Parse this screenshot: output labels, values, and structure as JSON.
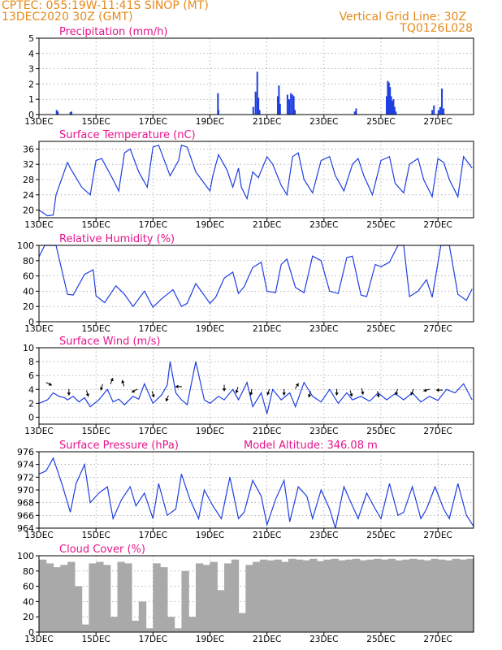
{
  "header": {
    "left_line1": "CPTEC:   055:19W-11:41S   SINOP (MT)",
    "left_line2": "13DEC2020  30Z (GMT)",
    "right_line1": "Vertical Grid Line: 30Z",
    "right_line2": "TQ0126L028"
  },
  "x_axis": {
    "ticks": [
      "13DEC",
      "15DEC",
      "17DEC",
      "19DEC",
      "21DEC",
      "23DEC",
      "25DEC",
      "27DEC"
    ],
    "tick_days": [
      0,
      2,
      4,
      6,
      8,
      10,
      12,
      14
    ],
    "xlim": [
      0,
      15.25
    ]
  },
  "colors": {
    "header": "#e68a1a",
    "panel_title": "#e6148c",
    "line": "#1f3fe0",
    "bar": "#1f3fe0",
    "cloud": "#a9a9a9",
    "grid": "#888888",
    "wind_arrow": "#000000"
  },
  "chart_data": [
    {
      "type": "bar",
      "title": "Precipitation (mm/h)",
      "ylim": [
        0,
        5
      ],
      "yticks": [
        0,
        1,
        2,
        3,
        4,
        5
      ],
      "grid": true,
      "x": [
        0.62,
        0.66,
        1.1,
        1.14,
        6.28,
        6.3,
        7.52,
        7.6,
        7.66,
        7.7,
        7.74,
        8.38,
        8.42,
        8.46,
        8.72,
        8.78,
        8.84,
        8.9,
        8.94,
        8.98,
        11.08,
        11.13,
        12.2,
        12.24,
        12.28,
        12.32,
        12.36,
        12.4,
        12.44,
        12.48,
        12.52,
        13.8,
        13.86,
        14.02,
        14.08,
        14.14,
        14.2
      ],
      "values": [
        0.3,
        0.2,
        0.15,
        0.2,
        1.4,
        0.3,
        0.5,
        1.5,
        2.8,
        1.1,
        0.3,
        1.2,
        1.9,
        0.7,
        1.3,
        1.0,
        1.4,
        1.3,
        1.2,
        0.3,
        0.2,
        0.4,
        1.2,
        2.2,
        2.1,
        1.8,
        1.2,
        0.9,
        1.0,
        0.5,
        0.2,
        0.3,
        0.6,
        0.3,
        0.5,
        1.7,
        0.4
      ]
    },
    {
      "type": "line",
      "title": "Surface Temperature (nC)",
      "ylim": [
        18,
        38
      ],
      "yticks": [
        20,
        24,
        28,
        32,
        36
      ],
      "grid": true,
      "x": [
        0,
        0.1,
        0.3,
        0.5,
        0.6,
        1,
        1.1,
        1.5,
        1.8,
        2,
        2.2,
        2.6,
        2.8,
        3,
        3.2,
        3.5,
        3.8,
        4,
        4.2,
        4.6,
        4.9,
        5,
        5.2,
        5.5,
        6,
        6.1,
        6.3,
        6.6,
        6.8,
        7,
        7.1,
        7.3,
        7.5,
        7.7,
        8,
        8.2,
        8.5,
        8.7,
        8.9,
        9.1,
        9.3,
        9.6,
        9.9,
        10.2,
        10.4,
        10.7,
        11,
        11.2,
        11.4,
        11.7,
        12,
        12.3,
        12.5,
        12.8,
        13,
        13.3,
        13.5,
        13.8,
        14,
        14.2,
        14.4,
        14.7,
        14.9,
        15.2
      ],
      "values": [
        20,
        19.5,
        18.5,
        18.7,
        24,
        32.5,
        31,
        26,
        24,
        33,
        33.5,
        28,
        25,
        35,
        36,
        30,
        26,
        36.5,
        37,
        29,
        33,
        37,
        36.5,
        30,
        25,
        29,
        34.5,
        30.5,
        26,
        31,
        26,
        23,
        30,
        28.5,
        34,
        32,
        26.5,
        24,
        34,
        35,
        28,
        24.5,
        33,
        34,
        29,
        25,
        32,
        33.5,
        29,
        24,
        33,
        34,
        27,
        24.5,
        32,
        33.5,
        28,
        23.5,
        33.5,
        32.5,
        28,
        23.5,
        34,
        31
      ]
    },
    {
      "type": "line",
      "title": "Relative Humidity (%)",
      "ylim": [
        0,
        100
      ],
      "yticks": [
        0,
        20,
        40,
        60,
        80,
        100
      ],
      "grid": true,
      "x": [
        0,
        0.2,
        0.6,
        1,
        1.2,
        1.6,
        1.9,
        2,
        2.3,
        2.7,
        3,
        3.3,
        3.7,
        4,
        4.3,
        4.7,
        5,
        5.2,
        5.5,
        6,
        6.2,
        6.5,
        6.8,
        7,
        7.2,
        7.5,
        7.8,
        8,
        8.3,
        8.5,
        8.7,
        9,
        9.3,
        9.6,
        9.9,
        10.2,
        10.5,
        10.8,
        11,
        11.3,
        11.5,
        11.8,
        12,
        12.3,
        12.6,
        12.8,
        13,
        13.3,
        13.6,
        13.8,
        14.1,
        14.4,
        14.7,
        15,
        15.2
      ],
      "values": [
        85,
        100,
        100,
        36,
        35,
        62,
        68,
        34,
        25,
        47,
        36,
        20,
        40,
        19,
        30,
        42,
        20,
        24,
        50,
        24,
        32,
        57,
        65,
        37,
        46,
        71,
        78,
        40,
        38,
        75,
        82,
        45,
        38,
        86,
        80,
        40,
        37,
        84,
        86,
        35,
        33,
        75,
        72,
        78,
        100,
        100,
        33,
        40,
        55,
        32,
        100,
        100,
        36,
        28,
        43
      ]
    },
    {
      "type": "line",
      "title": "Surface Wind (m/s)",
      "ylim": [
        -1,
        10
      ],
      "yticks": [
        0,
        2,
        4,
        6,
        8,
        10
      ],
      "grid": true,
      "x": [
        0,
        0.3,
        0.5,
        0.7,
        0.9,
        1,
        1.2,
        1.4,
        1.6,
        1.8,
        2.1,
        2.4,
        2.6,
        2.8,
        3,
        3.3,
        3.5,
        3.7,
        4,
        4.3,
        4.5,
        4.6,
        4.8,
        5,
        5.2,
        5.5,
        5.8,
        6,
        6.3,
        6.5,
        6.8,
        7,
        7.3,
        7.5,
        7.8,
        8,
        8.2,
        8.5,
        8.8,
        9,
        9.3,
        9.6,
        9.9,
        10.2,
        10.5,
        10.8,
        11,
        11.3,
        11.6,
        11.9,
        12.2,
        12.5,
        12.8,
        13.1,
        13.4,
        13.7,
        14,
        14.3,
        14.6,
        14.9,
        15.2
      ],
      "values": [
        2,
        2.5,
        3.5,
        3,
        2.8,
        2.5,
        3,
        2.2,
        2.8,
        1.5,
        2.5,
        4,
        2.2,
        2.6,
        1.8,
        3,
        2.6,
        4.8,
        2,
        3.2,
        4.6,
        8,
        3.5,
        2.5,
        1.8,
        8,
        2.5,
        2,
        3,
        2.5,
        4,
        2.5,
        5,
        1.5,
        3.5,
        0.5,
        4,
        2.5,
        3.5,
        1.5,
        5,
        3,
        2.2,
        4,
        2,
        3.5,
        2.5,
        3,
        2.3,
        3.5,
        2.5,
        3.4,
        2.5,
        3.5,
        2.2,
        3,
        2.4,
        4,
        3.5,
        4.8,
        2.5
      ],
      "arrows": [
        {
          "x": 0.35,
          "y": 4.8,
          "u": 1,
          "v": -0.5
        },
        {
          "x": 1.05,
          "y": 3.6,
          "u": 0,
          "v": -1
        },
        {
          "x": 1.7,
          "y": 3.4,
          "u": 0.3,
          "v": -1
        },
        {
          "x": 2.2,
          "y": 4.3,
          "u": -0.3,
          "v": -1
        },
        {
          "x": 2.55,
          "y": 5.2,
          "u": 0.4,
          "v": 1
        },
        {
          "x": 2.95,
          "y": 4.9,
          "u": -0.3,
          "v": 1
        },
        {
          "x": 3.35,
          "y": 3.8,
          "u": -1,
          "v": -0.6
        },
        {
          "x": 4.0,
          "y": 3.3,
          "u": 0.3,
          "v": -1
        },
        {
          "x": 4.5,
          "y": 2.7,
          "u": -0.4,
          "v": -1
        },
        {
          "x": 4.9,
          "y": 4.4,
          "u": -1,
          "v": 0
        },
        {
          "x": 6.5,
          "y": 4.2,
          "u": 0,
          "v": -1
        },
        {
          "x": 6.95,
          "y": 3.9,
          "u": -0.3,
          "v": -1
        },
        {
          "x": 7.45,
          "y": 3.6,
          "u": -0.2,
          "v": -1
        },
        {
          "x": 8.05,
          "y": 3.6,
          "u": -0.3,
          "v": -1
        },
        {
          "x": 8.6,
          "y": 3.6,
          "u": 0,
          "v": -1
        },
        {
          "x": 9.05,
          "y": 4.5,
          "u": 0.6,
          "v": 1
        },
        {
          "x": 9.5,
          "y": 3.3,
          "u": -0.3,
          "v": -1
        },
        {
          "x": 10.45,
          "y": 3.6,
          "u": 0,
          "v": -1
        },
        {
          "x": 10.95,
          "y": 3.4,
          "u": 0.3,
          "v": -1
        },
        {
          "x": 11.35,
          "y": 3.7,
          "u": 0.2,
          "v": -1
        },
        {
          "x": 11.9,
          "y": 3.3,
          "u": 0.2,
          "v": -1
        },
        {
          "x": 12.55,
          "y": 3.6,
          "u": -0.3,
          "v": -1
        },
        {
          "x": 13.1,
          "y": 3.6,
          "u": -0.4,
          "v": -1
        },
        {
          "x": 13.6,
          "y": 3.9,
          "u": -1,
          "v": -0.3
        },
        {
          "x": 14.05,
          "y": 3.9,
          "u": -1,
          "v": 0
        }
      ]
    },
    {
      "type": "line",
      "title": "Surface Pressure (hPa)",
      "subtitle": "Model Altitude: 346.08 m",
      "ylim": [
        964,
        976
      ],
      "yticks": [
        964,
        966,
        968,
        970,
        972,
        974,
        976
      ],
      "grid": true,
      "x": [
        0,
        0.25,
        0.5,
        0.8,
        1.1,
        1.3,
        1.6,
        1.8,
        2.1,
        2.4,
        2.6,
        2.9,
        3.2,
        3.4,
        3.7,
        4,
        4.2,
        4.5,
        4.8,
        5,
        5.3,
        5.6,
        5.8,
        6.1,
        6.4,
        6.7,
        7,
        7.2,
        7.5,
        7.8,
        8,
        8.3,
        8.6,
        8.8,
        9.1,
        9.4,
        9.6,
        9.9,
        10.2,
        10.4,
        10.7,
        11,
        11.2,
        11.5,
        11.8,
        12,
        12.3,
        12.6,
        12.8,
        13.1,
        13.4,
        13.6,
        13.9,
        14.2,
        14.4,
        14.7,
        15,
        15.25
      ],
      "values": [
        972.5,
        973,
        975,
        971,
        966.5,
        971,
        974,
        968,
        969.5,
        970.5,
        965.5,
        968.5,
        970.5,
        967.5,
        969.5,
        965.5,
        971,
        966,
        967,
        972.5,
        968.5,
        965.5,
        970,
        967.5,
        965.5,
        972,
        965.5,
        966.5,
        971.5,
        969,
        964.5,
        968.5,
        971.5,
        965,
        970.5,
        969,
        965.5,
        970,
        967,
        964,
        970.5,
        967.5,
        965.5,
        969.5,
        967,
        965.5,
        971,
        966,
        966.5,
        970.5,
        965.5,
        967,
        970.5,
        967,
        965.5,
        971,
        966,
        964.3
      ]
    },
    {
      "type": "bar",
      "title": "Cloud Cover (%)",
      "ylim": [
        0,
        100
      ],
      "yticks": [
        0,
        20,
        40,
        60,
        80,
        100
      ],
      "grid": true,
      "x": [
        0,
        0.25,
        0.5,
        0.75,
        1,
        1.25,
        1.5,
        1.75,
        2,
        2.25,
        2.5,
        2.75,
        3,
        3.25,
        3.5,
        3.75,
        4,
        4.25,
        4.5,
        4.75,
        5,
        5.25,
        5.5,
        5.75,
        6,
        6.25,
        6.5,
        6.75,
        7,
        7.25,
        7.5,
        7.75,
        8,
        8.25,
        8.5,
        8.75,
        9,
        9.25,
        9.5,
        9.75,
        10,
        10.25,
        10.5,
        10.75,
        11,
        11.25,
        11.5,
        11.75,
        12,
        12.25,
        12.5,
        12.75,
        13,
        13.25,
        13.5,
        13.75,
        14,
        14.25,
        14.5,
        14.75,
        15
      ],
      "values": [
        95,
        90,
        85,
        88,
        92,
        60,
        10,
        90,
        92,
        88,
        20,
        92,
        90,
        15,
        40,
        5,
        90,
        85,
        20,
        5,
        80,
        20,
        90,
        88,
        92,
        55,
        90,
        95,
        25,
        88,
        92,
        95,
        94,
        95,
        92,
        96,
        95,
        94,
        96,
        93,
        95,
        96,
        94,
        95,
        96,
        94,
        95,
        96,
        95,
        96,
        94,
        95,
        96,
        95,
        94,
        96,
        95,
        94,
        96,
        95,
        96
      ]
    }
  ]
}
